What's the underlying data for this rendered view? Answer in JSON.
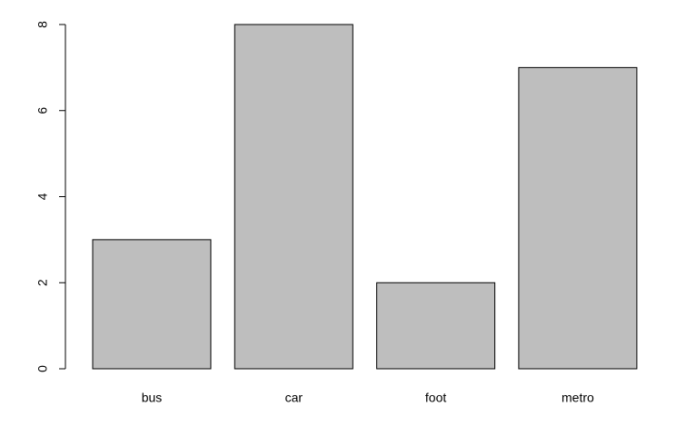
{
  "chart_data": {
    "type": "bar",
    "categories": [
      "bus",
      "car",
      "foot",
      "metro"
    ],
    "values": [
      3,
      8,
      2,
      7
    ],
    "color": "#bebebe",
    "ylim": [
      0,
      8
    ],
    "yticks": [
      0,
      2,
      4,
      6,
      8
    ]
  }
}
